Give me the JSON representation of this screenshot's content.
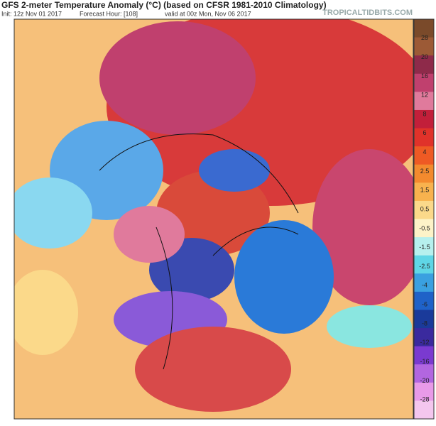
{
  "header": {
    "title": "GFS 2-meter Temperature Anomaly (°C) (based on CFSR 1981-2010 Climatology)",
    "init": "Init: 12z Nov 01 2017",
    "forecast_hour": "Forecast Hour: [108]",
    "valid": "valid at 00z Mon, Nov 06 2017",
    "source": "TROPICALTIDBITS.COM"
  },
  "colorbar": {
    "ticks": [
      28,
      20,
      16,
      12,
      8,
      6,
      4,
      2.5,
      1.5,
      0.5,
      -0.5,
      -1.5,
      -2.5,
      -4,
      -6,
      -8,
      -12,
      -16,
      -20,
      -28
    ],
    "colors": [
      "#7a4a2a",
      "#9c5a36",
      "#8e2a4a",
      "#c0406e",
      "#e07a9c",
      "#c21f3a",
      "#e0322a",
      "#ee5a24",
      "#f38a2e",
      "#f8b24e",
      "#fbd98a",
      "#fdf3c8",
      "#b6f0ee",
      "#5fd6e6",
      "#3aa0e0",
      "#1f62c8",
      "#1a3a9a",
      "#3a2a9e",
      "#7a3ad0",
      "#b266e0",
      "#e89ae8",
      "#f4c6ee"
    ]
  }
}
